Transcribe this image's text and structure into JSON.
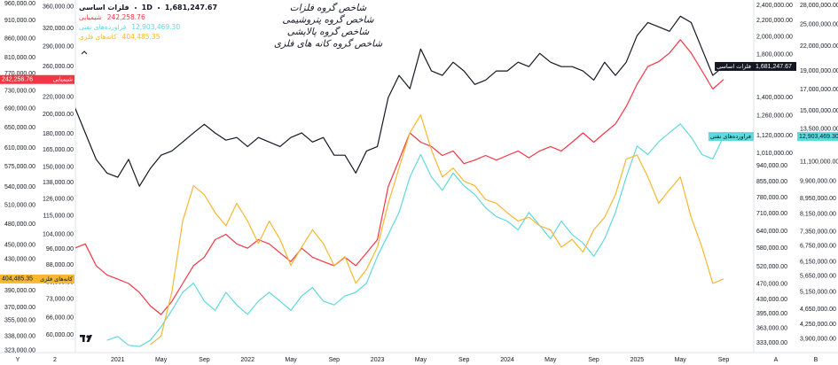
{
  "chart_data": {
    "type": "line",
    "interval": "1D",
    "log_scale": true,
    "grid": false,
    "annotations": [
      {
        "text": "شاخص گروه فلزات",
        "color": "#131722"
      },
      {
        "text": "شاخص گروه پتروشیمی",
        "color": "#f23645"
      },
      {
        "text": "شاخص گروه پالایشی",
        "color": "#5fd9de"
      },
      {
        "text": "شاخص گروه کانه های فلزی",
        "color": "#f7a81b"
      }
    ],
    "axis_footers": [
      "Y",
      "2",
      "A",
      "B"
    ],
    "x": [
      "2020-09",
      "2020-10",
      "2020-11",
      "2020-12",
      "2021-01",
      "2021-02",
      "2021-03",
      "2021-04",
      "2021-05",
      "2021-06",
      "2021-07",
      "2021-08",
      "2021-09",
      "2021-10",
      "2021-11",
      "2021-12",
      "2022-01",
      "2022-02",
      "2022-03",
      "2022-04",
      "2022-05",
      "2022-06",
      "2022-07",
      "2022-08",
      "2022-09",
      "2022-10",
      "2022-11",
      "2022-12",
      "2023-01",
      "2023-02",
      "2023-03",
      "2023-04",
      "2023-05",
      "2023-06",
      "2023-07",
      "2023-08",
      "2023-09",
      "2023-10",
      "2023-11",
      "2023-12",
      "2024-01",
      "2024-02",
      "2024-03",
      "2024-04",
      "2024-05",
      "2024-06",
      "2024-07",
      "2024-08",
      "2024-09",
      "2024-10",
      "2024-11",
      "2024-12",
      "2025-01",
      "2025-02",
      "2025-03",
      "2025-04",
      "2025-05",
      "2025-06",
      "2025-07",
      "2025-08",
      "2025-09"
    ],
    "xticks": [
      {
        "value": "2021-01",
        "label": "2021"
      },
      {
        "value": "2021-05",
        "label": "May"
      },
      {
        "value": "2021-09",
        "label": "Sep"
      },
      {
        "value": "2022-01",
        "label": "2022"
      },
      {
        "value": "2022-05",
        "label": "May"
      },
      {
        "value": "2022-09",
        "label": "Sep"
      },
      {
        "value": "2023-01",
        "label": "2023"
      },
      {
        "value": "2023-05",
        "label": "May"
      },
      {
        "value": "2023-09",
        "label": "Sep"
      },
      {
        "value": "2024-01",
        "label": "2024"
      },
      {
        "value": "2024-05",
        "label": "May"
      },
      {
        "value": "2024-09",
        "label": "Sep"
      },
      {
        "value": "2025-01",
        "label": "2025"
      },
      {
        "value": "2025-05",
        "label": "May"
      },
      {
        "value": "2025-09",
        "label": "Sep"
      }
    ],
    "series": [
      {
        "name": "فلزات اساسی",
        "color": "#131722",
        "axis": "right-inner",
        "last_label": "1,681,247.67",
        "ylim": [
          315000,
          2480000
        ],
        "yticks": [
          {
            "value": 2400000,
            "label": "2,400,000.00"
          },
          {
            "value": 2200000,
            "label": "2,200,000.00"
          },
          {
            "value": 2000000,
            "label": "2,000,000.00"
          },
          {
            "value": 1800000,
            "label": "1,800,000.00"
          },
          {
            "value": 1400000,
            "label": "1,400,000.00"
          },
          {
            "value": 1260000,
            "label": "1,260,000.00"
          },
          {
            "value": 1120000,
            "label": "1,120,000.00"
          },
          {
            "value": 1010000,
            "label": "1,010,000.00"
          },
          {
            "value": 940000,
            "label": "940,000.00"
          },
          {
            "value": 855000,
            "label": "855,000.00"
          },
          {
            "value": 780000,
            "label": "780,000.00"
          },
          {
            "value": 710000,
            "label": "710,000.00"
          },
          {
            "value": 640000,
            "label": "640,000.00"
          },
          {
            "value": 580000,
            "label": "580,000.00"
          },
          {
            "value": 520000,
            "label": "520,000.00"
          },
          {
            "value": 470000,
            "label": "470,000.00"
          },
          {
            "value": 430000,
            "label": "430,000.00"
          },
          {
            "value": 395000,
            "label": "395,000.00"
          },
          {
            "value": 363000,
            "label": "363,000.00"
          },
          {
            "value": 333000,
            "label": "333,000.00"
          }
        ],
        "values": [
          1330000,
          1139000,
          976000,
          901000,
          879000,
          976000,
          834000,
          924000,
          1000000,
          1025000,
          1080000,
          1139000,
          1198000,
          1139000,
          1092000,
          1109000,
          1052000,
          1109000,
          1080000,
          1052000,
          1109000,
          1139000,
          1080000,
          1109000,
          1000000,
          1000000,
          901000,
          1025000,
          1052000,
          1401000,
          1595000,
          1476000,
          1862000,
          1637000,
          1595000,
          1723000,
          1637000,
          1513000,
          1552000,
          1637000,
          1637000,
          1723000,
          1679000,
          1815000,
          1723000,
          1679000,
          1679000,
          1637000,
          1552000,
          1723000,
          1595000,
          1723000,
          2013000,
          2174000,
          2119000,
          2065000,
          2256000,
          2174000,
          1862000,
          1595000,
          1681247.67
        ]
      },
      {
        "name": "شیمیایی",
        "color": "#f23645",
        "axis": "left-inner",
        "last_label": "242,258.76",
        "ylim": [
          54500,
          374000
        ],
        "yticks": [
          {
            "value": 360000,
            "label": "360,000.00"
          },
          {
            "value": 320000,
            "label": "320,000.00"
          },
          {
            "value": 290000,
            "label": "290,000.00"
          },
          {
            "value": 260000,
            "label": "260,000.00"
          },
          {
            "value": 220000,
            "label": "220,000.00"
          },
          {
            "value": 200000,
            "label": "200,000.00"
          },
          {
            "value": 180000,
            "label": "180,000.00"
          },
          {
            "value": 165000,
            "label": "165,000.00"
          },
          {
            "value": 150000,
            "label": "150,000.00"
          },
          {
            "value": 138000,
            "label": "138,000.00"
          },
          {
            "value": 126000,
            "label": "126,000.00"
          },
          {
            "value": 115000,
            "label": "115,000.00"
          },
          {
            "value": 104000,
            "label": "104,000.00"
          },
          {
            "value": 96000,
            "label": "96,000.00"
          },
          {
            "value": 88000,
            "label": "88,000.00"
          },
          {
            "value": 80000,
            "label": "80,000.00"
          },
          {
            "value": 73000,
            "label": "73,000.00"
          },
          {
            "value": 66000,
            "label": "66,000.00"
          },
          {
            "value": 60000,
            "label": "60,000.00"
          }
        ],
        "values": [
          96400,
          98700,
          87600,
          83300,
          81400,
          79500,
          75700,
          70400,
          67100,
          72100,
          79500,
          87600,
          91800,
          101000,
          104000,
          98700,
          96400,
          101000,
          98700,
          94000,
          89600,
          96400,
          91800,
          89600,
          87600,
          91800,
          87600,
          94000,
          101000,
          135000,
          156000,
          181000,
          172000,
          168000,
          160000,
          164000,
          153000,
          156000,
          160000,
          156000,
          160000,
          164000,
          158000,
          164000,
          168000,
          164000,
          172000,
          181000,
          172000,
          181000,
          190000,
          209000,
          236000,
          260000,
          267000,
          280000,
          301000,
          280000,
          254000,
          230000,
          242258.76
        ]
      },
      {
        "name": "فراورده‌های نفتی",
        "color": "#5fd9de",
        "axis": "right-outer",
        "last_label": "12,903,469.30",
        "ylim": [
          3600000,
          28900000
        ],
        "yticks": [
          {
            "value": 28000000,
            "label": "28,000,000.00"
          },
          {
            "value": 25000000,
            "label": "25,000,000.00"
          },
          {
            "value": 22000000,
            "label": "22,000,000.00"
          },
          {
            "value": 19000000,
            "label": "19,000,000.00"
          },
          {
            "value": 17000000,
            "label": "17,000,000.00"
          },
          {
            "value": 15000000,
            "label": "15,000,000.00"
          },
          {
            "value": 13500000,
            "label": "13,500,000.00"
          },
          {
            "value": 11100000,
            "label": "11,100,000.00"
          },
          {
            "value": 9900000,
            "label": "9,900,000.00"
          },
          {
            "value": 8950000,
            "label": "8,950,000.00"
          },
          {
            "value": 8150000,
            "label": "8,150,000.00"
          },
          {
            "value": 7350000,
            "label": "7,350,000.00"
          },
          {
            "value": 6750000,
            "label": "6,750,000.00"
          },
          {
            "value": 6150000,
            "label": "6,150,000.00"
          },
          {
            "value": 5650000,
            "label": "5,650,000.00"
          },
          {
            "value": 5150000,
            "label": "5,150,000.00"
          },
          {
            "value": 4650000,
            "label": "4,650,000.00"
          },
          {
            "value": 4250000,
            "label": "4,250,000.00"
          },
          {
            "value": 3900000,
            "label": "3,900,000.00"
          }
        ],
        "values": [
          null,
          null,
          null,
          3870000,
          3960000,
          3760000,
          3730000,
          3870000,
          4190000,
          4620000,
          5140000,
          5430000,
          4880000,
          4620000,
          5140000,
          4770000,
          4510000,
          4880000,
          5140000,
          4880000,
          4620000,
          5030000,
          5290000,
          4880000,
          4770000,
          5030000,
          5140000,
          5430000,
          6360000,
          7230000,
          8240000,
          10150000,
          11600000,
          10150000,
          9390000,
          10400000,
          9650000,
          9160000,
          8470000,
          8030000,
          7830000,
          7430000,
          8240000,
          7630000,
          7050000,
          7830000,
          7230000,
          6880000,
          6360000,
          7050000,
          8240000,
          10150000,
          12200000,
          11600000,
          12500000,
          13200000,
          13900000,
          12860000,
          11600000,
          11300000,
          12903469.3
        ]
      },
      {
        "name": "کانه‌های فلزی",
        "color": "#f7b731",
        "axis": "left-outer",
        "last_label": "404,485.35",
        "ylim": [
          321000,
          971000
        ],
        "yticks": [
          {
            "value": 960000,
            "label": "960,000.00"
          },
          {
            "value": 910000,
            "label": "910,000.00"
          },
          {
            "value": 860000,
            "label": "860,000.00"
          },
          {
            "value": 810000,
            "label": "810,000.00"
          },
          {
            "value": 770000,
            "label": "770,000.00"
          },
          {
            "value": 730000,
            "label": "730,000.00"
          },
          {
            "value": 690000,
            "label": "690,000.00"
          },
          {
            "value": 650000,
            "label": "650,000.00"
          },
          {
            "value": 610000,
            "label": "610,000.00"
          },
          {
            "value": 575000,
            "label": "575,000.00"
          },
          {
            "value": 540000,
            "label": "540,000.00"
          },
          {
            "value": 510000,
            "label": "510,000.00"
          },
          {
            "value": 480000,
            "label": "480,000.00"
          },
          {
            "value": 450000,
            "label": "450,000.00"
          },
          {
            "value": 430000,
            "label": "430,000.00"
          },
          {
            "value": 390000,
            "label": "390,000.00"
          },
          {
            "value": 370000,
            "label": "370,000.00"
          },
          {
            "value": 355000,
            "label": "355,000.00"
          },
          {
            "value": 338000,
            "label": "338,000.00"
          },
          {
            "value": 323000,
            "label": "323,000.00"
          }
        ],
        "values": [
          null,
          null,
          null,
          null,
          null,
          null,
          null,
          329000,
          338000,
          388000,
          485000,
          542000,
          527000,
          498000,
          478000,
          513000,
          485000,
          452000,
          485000,
          458000,
          422000,
          447000,
          472000,
          452000,
          422000,
          434000,
          399000,
          417000,
          447000,
          513000,
          573000,
          640000,
          677000,
          606000,
          557000,
          573000,
          550000,
          542000,
          519000,
          513000,
          498000,
          485000,
          491000,
          478000,
          472000,
          447000,
          458000,
          440000,
          472000,
          491000,
          527000,
          589000,
          597000,
          557000,
          513000,
          535000,
          557000,
          491000,
          447000,
          399000,
          404485.35
        ]
      }
    ]
  }
}
